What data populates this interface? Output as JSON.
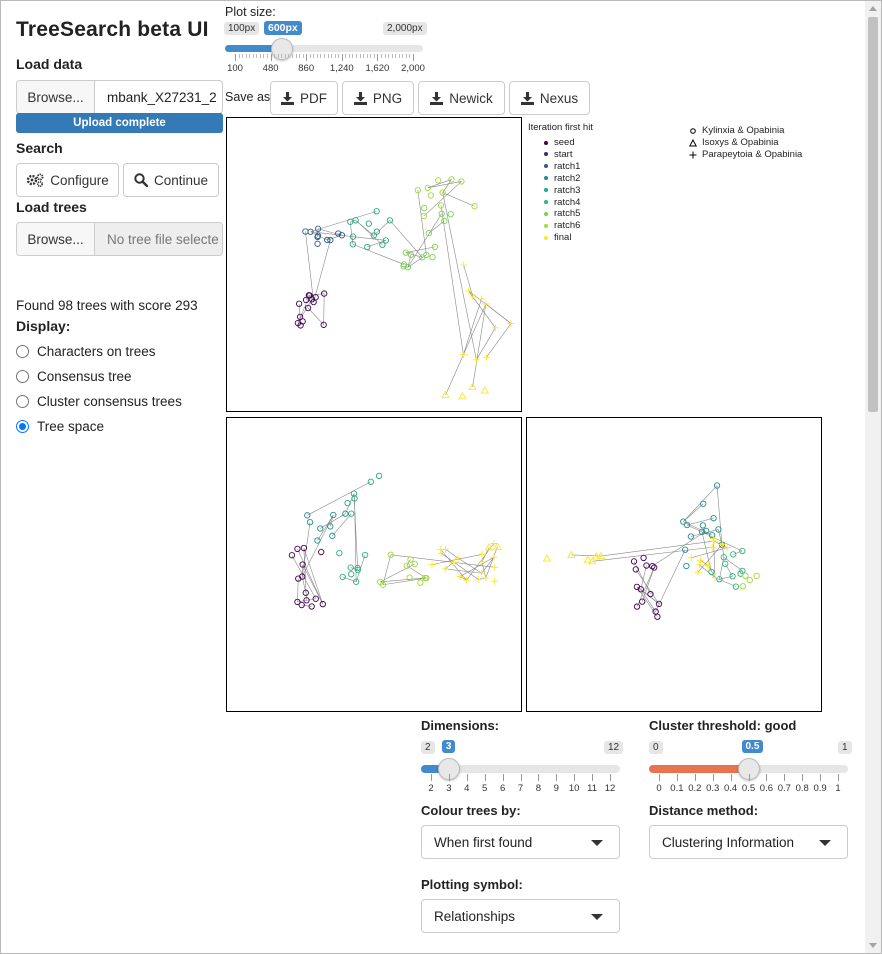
{
  "app": {
    "title": "TreeSearch beta UI"
  },
  "load_data": {
    "heading": "Load data",
    "browse_label": "Browse...",
    "file_name": "mbank_X27231_2",
    "status": "Upload complete"
  },
  "search": {
    "heading": "Search",
    "configure_label": "Configure",
    "continue_label": "Continue"
  },
  "load_trees": {
    "heading": "Load trees",
    "browse_label": "Browse...",
    "placeholder": "No tree file selecte"
  },
  "results": {
    "found_text": "Found 98 trees with score 293"
  },
  "display": {
    "heading": "Display:",
    "options": [
      {
        "label": "Characters on trees",
        "selected": false
      },
      {
        "label": "Consensus tree",
        "selected": false
      },
      {
        "label": "Cluster consensus trees",
        "selected": false
      },
      {
        "label": "Tree space",
        "selected": true
      }
    ]
  },
  "plot_size": {
    "label": "Plot size:",
    "min_label": "100px",
    "max_label": "2,000px",
    "value_label": "600px",
    "value": 600,
    "min": 100,
    "max": 2000,
    "ticks": [
      "100",
      "480",
      "860",
      "1,240",
      "1,620",
      "2,000"
    ]
  },
  "save_as": {
    "label": "Save as:",
    "buttons": [
      "PDF",
      "PNG",
      "Newick",
      "Nexus"
    ]
  },
  "legend": {
    "title": "Iteration first hit",
    "items": [
      {
        "label": "seed",
        "color": "#440154"
      },
      {
        "label": "start",
        "color": "#3b2f74"
      },
      {
        "label": "ratch1",
        "color": "#2f5b8a"
      },
      {
        "label": "ratch2",
        "color": "#21908d"
      },
      {
        "label": "ratch3",
        "color": "#22a884"
      },
      {
        "label": "ratch4",
        "color": "#2fb47c"
      },
      {
        "label": "ratch5",
        "color": "#7ad151"
      },
      {
        "label": "ratch6",
        "color": "#a0da39"
      },
      {
        "label": "final",
        "color": "#fde725"
      }
    ]
  },
  "shape_legend": {
    "items": [
      {
        "symbol": "circle",
        "label": "Kylinxia & Opabinia"
      },
      {
        "symbol": "triangle",
        "label": "Isoxys & Opabinia"
      },
      {
        "symbol": "plus",
        "label": "Parapeytoia & Opabinia"
      }
    ]
  },
  "dimensions": {
    "label": "Dimensions:",
    "min": 2,
    "max": 12,
    "value": 3,
    "min_label": "2",
    "max_label": "12",
    "value_label": "3",
    "ticks": [
      "2",
      "3",
      "4",
      "5",
      "6",
      "7",
      "8",
      "9",
      "10",
      "11",
      "12"
    ]
  },
  "cluster_threshold": {
    "label": "Cluster threshold: good",
    "min": 0,
    "max": 1,
    "value": 0.5,
    "min_label": "0",
    "max_label": "1",
    "value_label": "0.5",
    "ticks": [
      "0",
      "0.1",
      "0.2",
      "0.3",
      "0.4",
      "0.5",
      "0.6",
      "0.7",
      "0.8",
      "0.9",
      "1"
    ]
  },
  "colour_trees": {
    "label": "Colour trees by:",
    "value": "When first found"
  },
  "distance_method": {
    "label": "Distance method:",
    "value": "Clustering Information"
  },
  "plotting_symbol": {
    "label": "Plotting symbol:",
    "value": "Relationships"
  },
  "colors": {
    "accent": "#337ab7",
    "slider_blue": "#428bca",
    "slider_orange": "#e8744f",
    "radio_checked": "#0075ff"
  }
}
